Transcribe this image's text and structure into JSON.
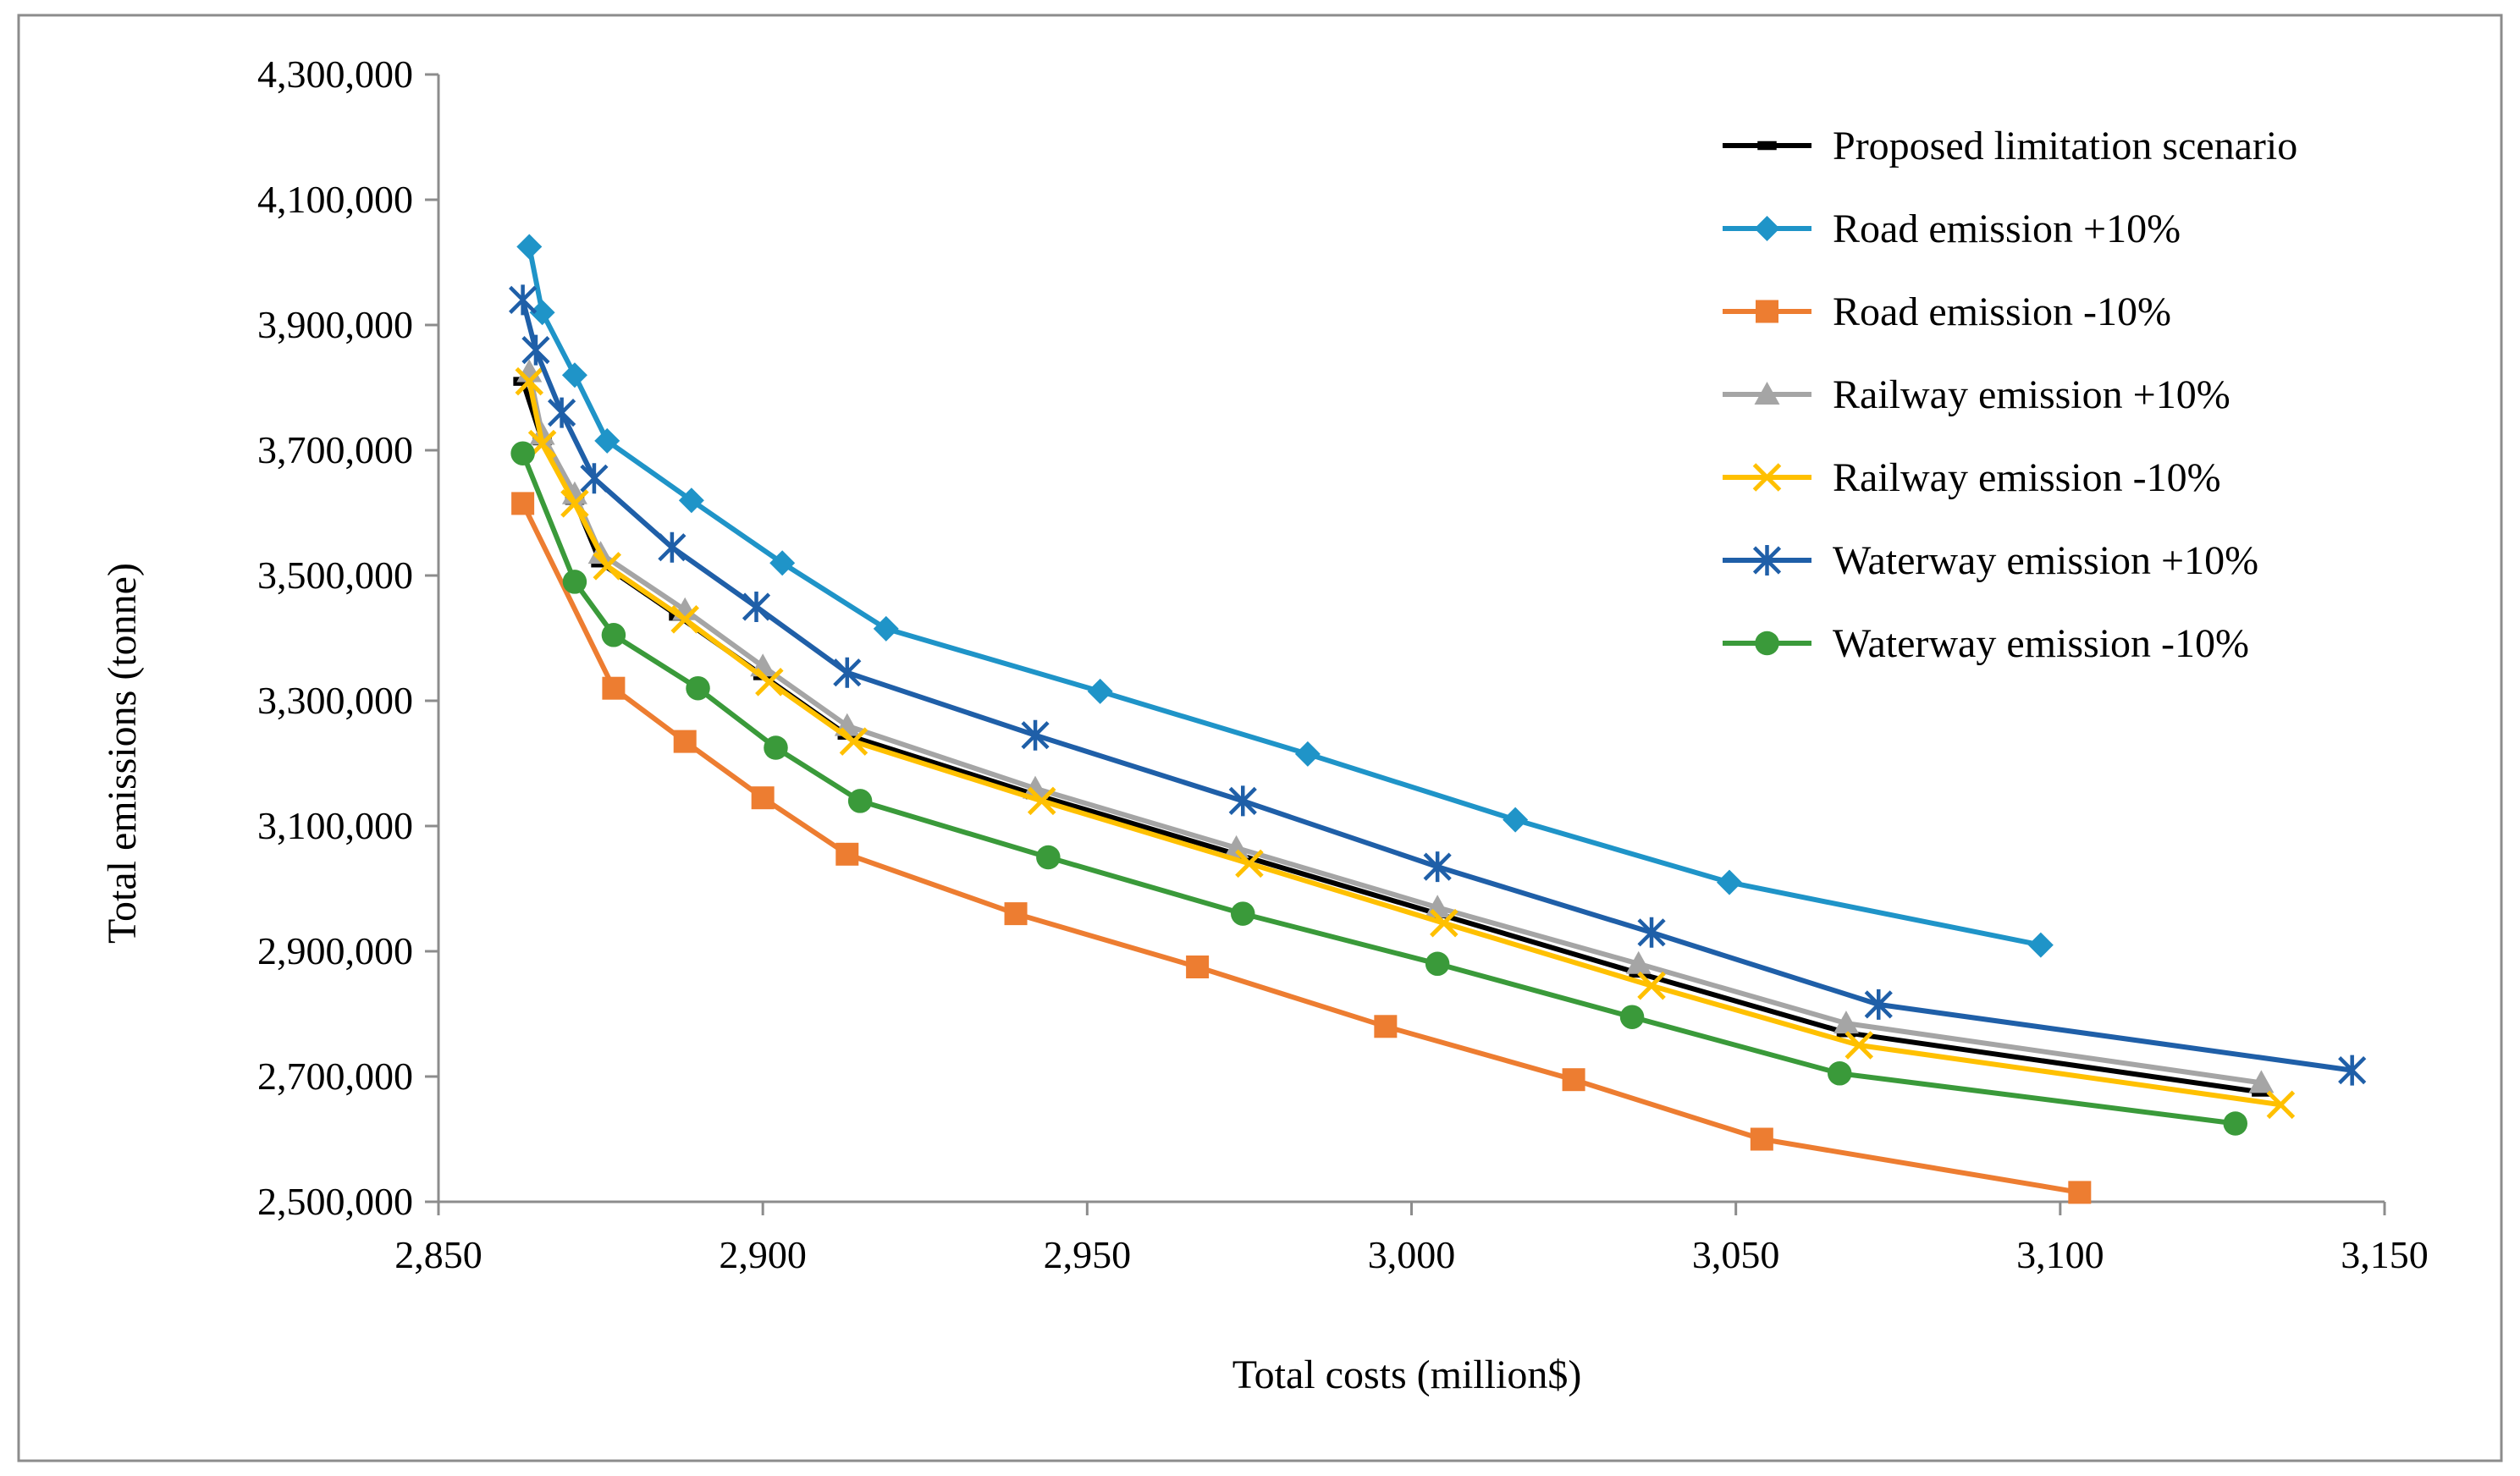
{
  "chart_data": {
    "type": "line",
    "title": "",
    "xlabel": "Total costs (million$)",
    "ylabel": "Total emissions (tonne)",
    "xlim": [
      2850,
      3150
    ],
    "ylim": [
      2500000,
      4300000
    ],
    "x_ticks": [
      2850,
      2900,
      2950,
      3000,
      3050,
      3100,
      3150
    ],
    "x_tick_labels": [
      "2,850",
      "2,900",
      "2,950",
      "3,000",
      "3,050",
      "3,100",
      "3,150"
    ],
    "y_ticks": [
      2500000,
      2700000,
      2900000,
      3100000,
      3300000,
      3500000,
      3700000,
      3900000,
      4100000,
      4300000
    ],
    "y_tick_labels": [
      "2,500,000",
      "2,700,000",
      "2,900,000",
      "3,100,000",
      "3,300,000",
      "3,500,000",
      "3,700,000",
      "3,900,000",
      "4,100,000",
      "4,300,000"
    ],
    "grid": false,
    "legend_position": "top-right",
    "series": [
      {
        "name": "Proposed limitation scenario",
        "color": "#000000",
        "marker": "dash",
        "x": [
          2863,
          2866,
          2871,
          2875,
          2887,
          2900,
          2913,
          2942,
          2973,
          3004,
          3035,
          3067,
          3131
        ],
        "y": [
          3810000,
          3715000,
          3620000,
          3520000,
          3435000,
          3340000,
          3245000,
          3150000,
          3055000,
          2960000,
          2865000,
          2770000,
          2675000
        ]
      },
      {
        "name": "Road emission +10%",
        "color": "#1F94C8",
        "marker": "diamond",
        "x": [
          2864,
          2866,
          2871,
          2876,
          2889,
          2903,
          2919,
          2952,
          2984,
          3016,
          3049,
          3097
        ],
        "y": [
          4025000,
          3920000,
          3820000,
          3715000,
          3620000,
          3520000,
          3415000,
          3315000,
          3215000,
          3110000,
          3010000,
          2910000
        ]
      },
      {
        "name": "Road emission -10%",
        "color": "#ED7D31",
        "marker": "square",
        "x": [
          2863,
          2877,
          2888,
          2900,
          2913,
          2939,
          2967,
          2996,
          3025,
          3054,
          3103
        ],
        "y": [
          3615000,
          3320000,
          3235000,
          3145000,
          3055000,
          2960000,
          2875000,
          2780000,
          2695000,
          2600000,
          2515000
        ]
      },
      {
        "name": "Railway emission +10%",
        "color": "#A5A5A5",
        "marker": "triangle",
        "x": [
          2864,
          2866,
          2871,
          2875,
          2888,
          2900,
          2913,
          2942,
          2973,
          3004,
          3035,
          3067,
          3131
        ],
        "y": [
          3825000,
          3725000,
          3630000,
          3535000,
          3445000,
          3355000,
          3260000,
          3160000,
          3065000,
          2970000,
          2880000,
          2785000,
          2690000
        ]
      },
      {
        "name": "Railway emission -10%",
        "color": "#FFC000",
        "marker": "x",
        "x": [
          2864,
          2866,
          2871,
          2876,
          2888,
          2901,
          2914,
          2943,
          2975,
          3005,
          3037,
          3069,
          3134
        ],
        "y": [
          3810000,
          3710000,
          3615000,
          3515000,
          3430000,
          3330000,
          3235000,
          3140000,
          3040000,
          2945000,
          2845000,
          2750000,
          2655000
        ]
      },
      {
        "name": "Waterway emission +10%",
        "color": "#1F5FA8",
        "marker": "star",
        "x": [
          2863,
          2865,
          2869,
          2874,
          2886,
          2899,
          2913,
          2942,
          2974,
          3004,
          3037,
          3072,
          3145
        ],
        "y": [
          3940000,
          3860000,
          3760000,
          3655000,
          3545000,
          3450000,
          3345000,
          3245000,
          3140000,
          3035000,
          2930000,
          2815000,
          2710000
        ]
      },
      {
        "name": "Waterway emission -10%",
        "color": "#3A9A3A",
        "marker": "circle",
        "x": [
          2863,
          2871,
          2877,
          2890,
          2902,
          2915,
          2944,
          2974,
          3004,
          3034,
          3066,
          3127
        ],
        "y": [
          3695000,
          3490000,
          3405000,
          3320000,
          3225000,
          3140000,
          3050000,
          2960000,
          2880000,
          2795000,
          2705000,
          2625000
        ]
      }
    ]
  }
}
